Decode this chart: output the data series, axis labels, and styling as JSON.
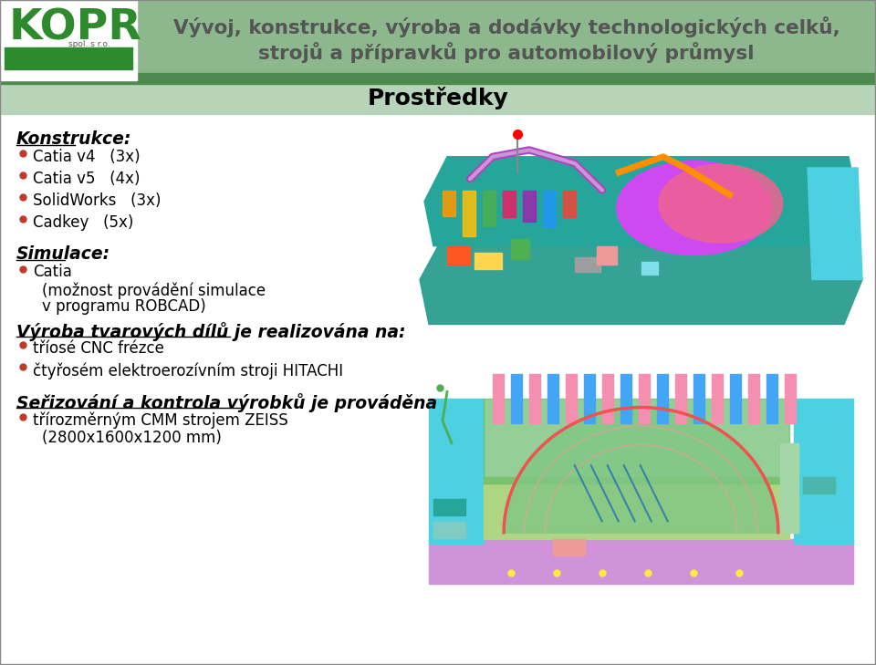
{
  "title_line1": "Vývoj, konstrukce, výroba a dodávky technologických celků,",
  "title_line2": "strojů a přípravků pro automobilový průmysl",
  "section_title": "Prostředky",
  "header_bg": "#8db88d",
  "header_stripe_color": "#4d8a4d",
  "sub_header_bg": "#b8d4b8",
  "body_bg": "#ffffff",
  "kopr_green": "#2d8a2d",
  "title_color": "#555555",
  "bullet_color": "#c0392b",
  "konstrukce_label": "Konstrukce:",
  "bullets_konstrukce": [
    [
      "Catia v4",
      "(3x)"
    ],
    [
      "Catia v5",
      "(4x)"
    ],
    [
      "SolidWorks",
      "(3x)"
    ],
    [
      "Cadkey",
      "(5x)"
    ]
  ],
  "simulace_label": "Simulace:",
  "vyroba_label": "Výroba tvarových dílů je realizována na:",
  "bullets_vyroba": [
    "tříosé CNC frézce",
    "čtyřosém elektroerozívním stroji HITACHI"
  ],
  "serizovani_label": "Seřizování a kontrola výrobků je prováděna",
  "bullets_serizovani_l1": "třírozměrným CMM strojem ZEISS",
  "bullets_serizovani_l2": "(2800x1600x1200 mm)"
}
